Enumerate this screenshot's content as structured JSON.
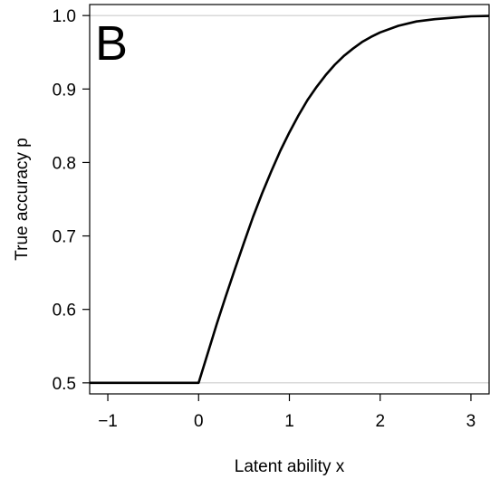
{
  "chart_data": {
    "type": "line",
    "panel_label": "B",
    "xlabel": "Latent ability x",
    "ylabel": "True accuracy p",
    "xlim": [
      -1.2,
      3.2
    ],
    "ylim": [
      0.485,
      1.015
    ],
    "xticks": [
      -1,
      0,
      1,
      2,
      3
    ],
    "xtick_labels": [
      "−1",
      "0",
      "1",
      "2",
      "3"
    ],
    "yticks": [
      0.5,
      0.6,
      0.7,
      0.8,
      0.9,
      1.0
    ],
    "ytick_labels": [
      "0.5",
      "0.6",
      "0.7",
      "0.8",
      "0.9",
      "1.0"
    ],
    "reference_lines_y": [
      0.5,
      1.0
    ],
    "reference_line_color": "#cccccc",
    "line_color": "#000000",
    "series": [
      {
        "x": [
          -1.2,
          -1.0,
          -0.5,
          0.0,
          0.1,
          0.2,
          0.3,
          0.4,
          0.5,
          0.6,
          0.7,
          0.8,
          0.9,
          1.0,
          1.1,
          1.2,
          1.3,
          1.4,
          1.5,
          1.6,
          1.7,
          1.8,
          1.9,
          2.0,
          2.2,
          2.4,
          2.6,
          2.8,
          3.0,
          3.2
        ],
        "y": [
          0.5,
          0.5,
          0.5,
          0.5,
          0.54,
          0.58,
          0.618,
          0.655,
          0.691,
          0.726,
          0.758,
          0.788,
          0.816,
          0.841,
          0.864,
          0.885,
          0.903,
          0.919,
          0.933,
          0.945,
          0.955,
          0.964,
          0.971,
          0.977,
          0.986,
          0.992,
          0.995,
          0.997,
          0.999,
          0.9995
        ]
      }
    ]
  }
}
